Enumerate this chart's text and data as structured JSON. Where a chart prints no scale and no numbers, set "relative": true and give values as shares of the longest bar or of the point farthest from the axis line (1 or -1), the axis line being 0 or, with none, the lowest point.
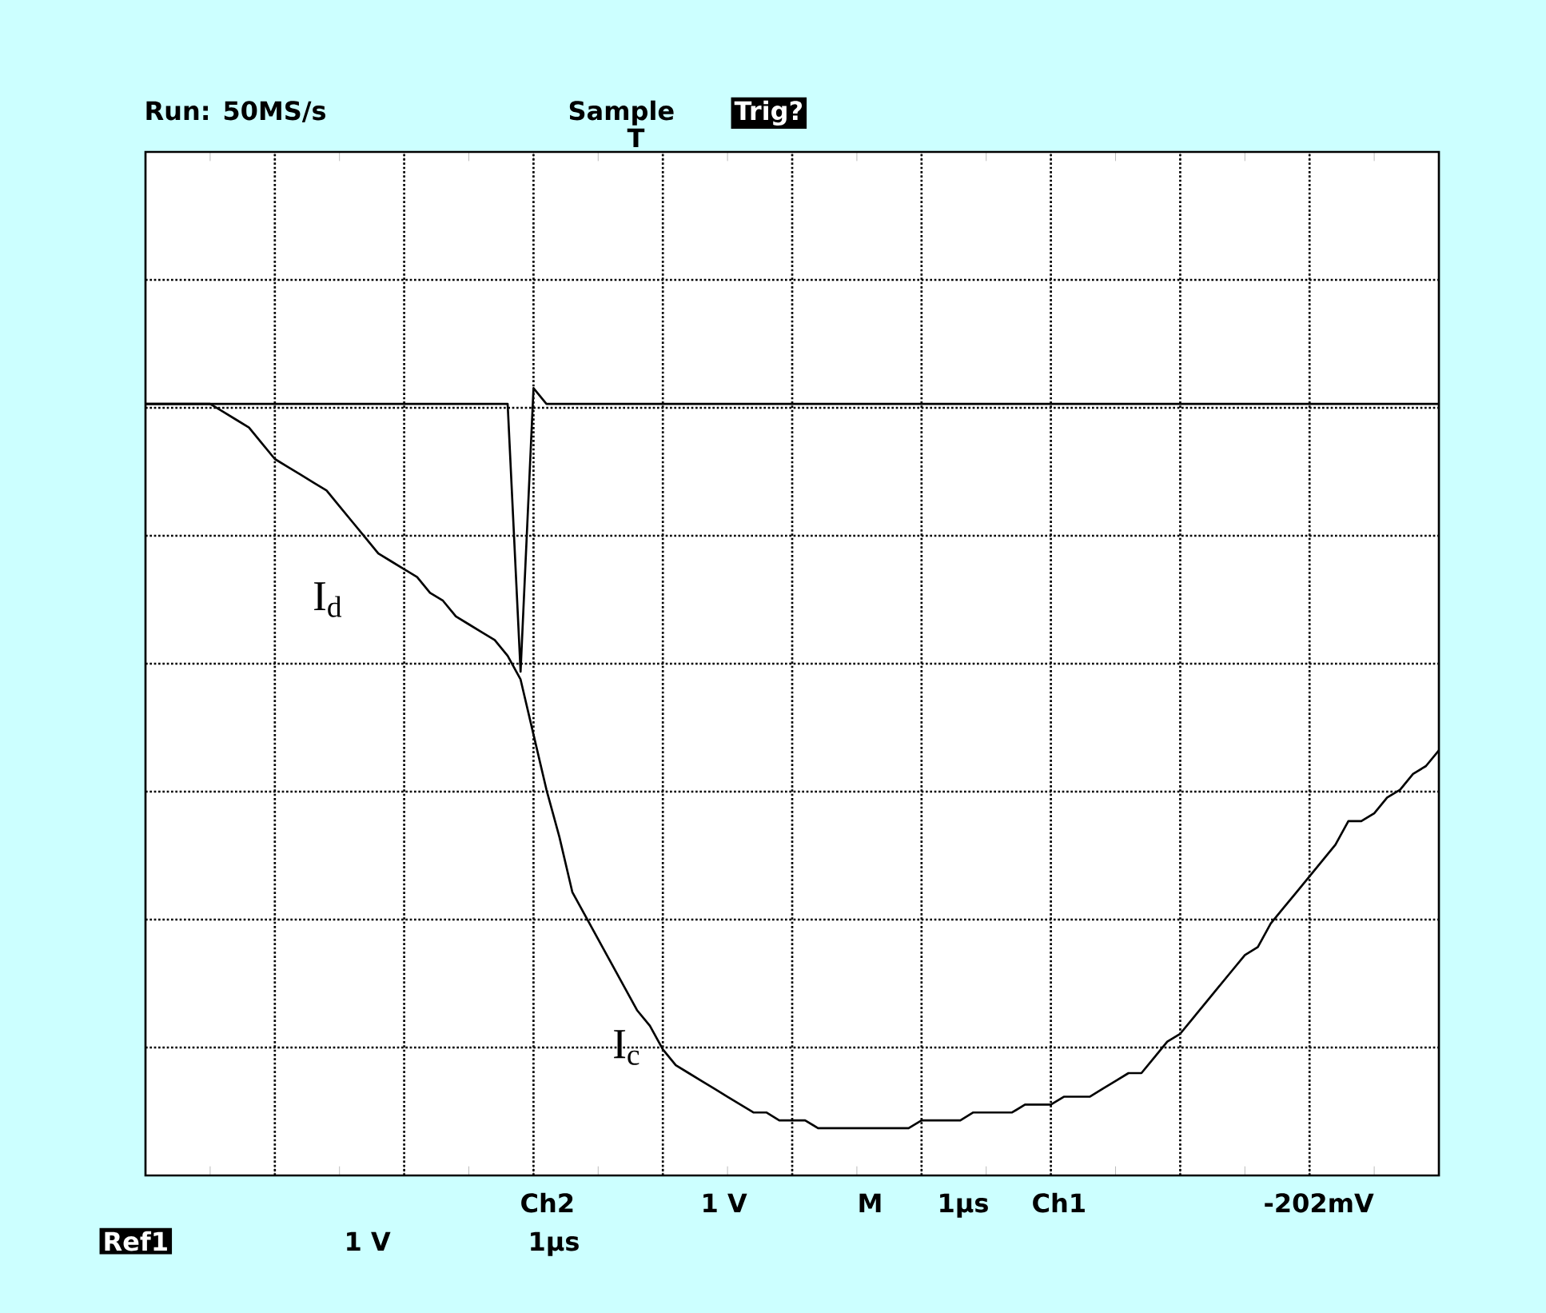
{
  "chart_data": {
    "type": "line",
    "relative": true,
    "grid": true,
    "marker": "none",
    "line_style": "solid",
    "categories": [
      null,
      null,
      null,
      null,
      null,
      null,
      null,
      null,
      null,
      null,
      null,
      null,
      null,
      null,
      null,
      null,
      null,
      null,
      null,
      null,
      null,
      null,
      null,
      null,
      null,
      null,
      null,
      null,
      null,
      null,
      null,
      null,
      null,
      null,
      null,
      null,
      null,
      null,
      null,
      null,
      null,
      null,
      null,
      null,
      null,
      null,
      null,
      null,
      null,
      null,
      null,
      null,
      null,
      null,
      null,
      null,
      null,
      null,
      null,
      null,
      null,
      null,
      null,
      null,
      null,
      null,
      null,
      null,
      null,
      null,
      null,
      null,
      null,
      null,
      null,
      null,
      null,
      null,
      null,
      null,
      null,
      null,
      null,
      null,
      null,
      null,
      null,
      null,
      null,
      null,
      null,
      null,
      null,
      null,
      null,
      null,
      null,
      null,
      null,
      null,
      null
    ],
    "series": [
      {
        "color": "#000000",
        "values": [
          0.98,
          0.98,
          0.98,
          0.98,
          0.98,
          0.98,
          0.98,
          0.98,
          0.98,
          0.98,
          0.98,
          0.98,
          0.98,
          0.98,
          0.98,
          0.98,
          0.98,
          0.98,
          0.98,
          0.98,
          0.98,
          0.98,
          0.98,
          0.98,
          0.98,
          0.98,
          0.98,
          0.98,
          0.98,
          0.64,
          1.0,
          0.98,
          0.98,
          0.98,
          0.98,
          0.98,
          0.98,
          0.98,
          0.98,
          0.98,
          0.98,
          0.98,
          0.98,
          0.98,
          0.98,
          0.98,
          0.98,
          0.98,
          0.98,
          0.98,
          0.98,
          0.98,
          0.98,
          0.98,
          0.98,
          0.98,
          0.98,
          0.98,
          0.98,
          0.98,
          0.98,
          0.98,
          0.98,
          0.98,
          0.98,
          0.98,
          0.98,
          0.98,
          0.98,
          0.98,
          0.98,
          0.98,
          0.98,
          0.98,
          0.98,
          0.98,
          0.98,
          0.98,
          0.98,
          0.98,
          0.98,
          0.98,
          0.98,
          0.98,
          0.98,
          0.98,
          0.98,
          0.98,
          0.98,
          0.98,
          0.98,
          0.98,
          0.98,
          0.98,
          0.98,
          0.98,
          0.98,
          0.98,
          0.98,
          0.98,
          0.98
        ]
      },
      {
        "color": "#000000",
        "values": [
          0.98,
          0.98,
          0.98,
          0.98,
          0.98,
          0.98,
          0.97,
          0.96,
          0.95,
          0.93,
          0.91,
          0.9,
          0.89,
          0.88,
          0.87,
          0.85,
          0.83,
          0.81,
          0.79,
          0.78,
          0.77,
          0.76,
          0.74,
          0.73,
          0.71,
          0.7,
          0.69,
          0.68,
          0.66,
          0.63,
          0.56,
          0.49,
          0.43,
          0.36,
          0.33,
          0.3,
          0.27,
          0.24,
          0.21,
          0.19,
          0.16,
          0.14,
          0.13,
          0.12,
          0.11,
          0.1,
          0.09,
          0.08,
          0.08,
          0.07,
          0.07,
          0.07,
          0.06,
          0.06,
          0.06,
          0.06,
          0.06,
          0.06,
          0.06,
          0.06,
          0.07,
          0.07,
          0.07,
          0.07,
          0.08,
          0.08,
          0.08,
          0.08,
          0.09,
          0.09,
          0.09,
          0.1,
          0.1,
          0.1,
          0.11,
          0.12,
          0.13,
          0.13,
          0.15,
          0.17,
          0.18,
          0.2,
          0.22,
          0.24,
          0.26,
          0.28,
          0.29,
          0.32,
          0.34,
          0.36,
          0.38,
          0.4,
          0.42,
          0.45,
          0.45,
          0.46,
          0.48,
          0.49,
          0.51,
          0.52,
          0.54
        ]
      }
    ],
    "annotations": [
      "I$_{d}$",
      "I$_{c}$",
      "Run: 50MS/s",
      "Sample",
      "Trig?",
      "T",
      "Ch2",
      "1 V",
      "M",
      "1µs",
      "Ch1",
      "-202mV",
      "Ref1",
      "1 V",
      "1µs"
    ]
  }
}
